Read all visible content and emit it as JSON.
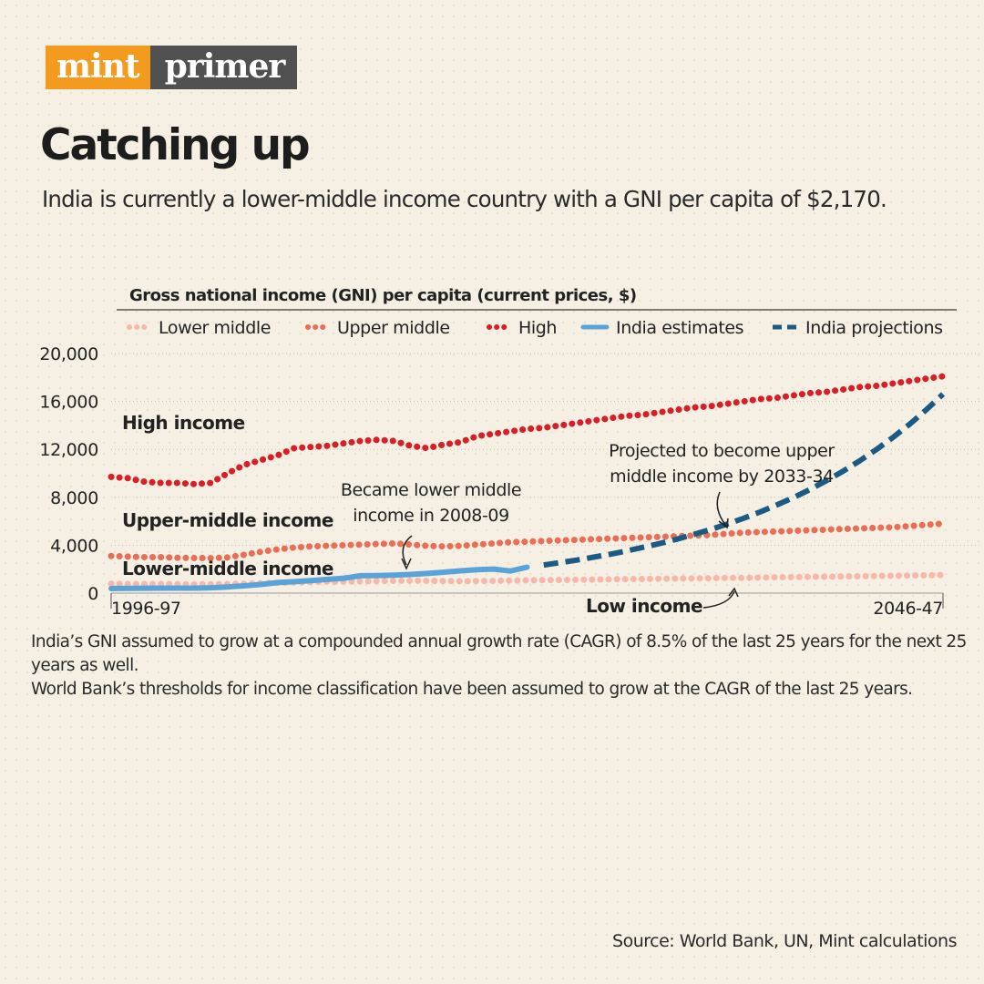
{
  "brand": {
    "left": "mint",
    "right": "primer"
  },
  "headline": "Catching up",
  "subhead": "India is currently a lower-middle income country with a GNI per capita of $2,170.",
  "colors": {
    "lower_middle": "#f5b8aa",
    "upper_middle": "#e96e55",
    "high": "#d61f26",
    "india_estimates": "#5aa3d8",
    "india_projections": "#1c5a83"
  },
  "chart_data": {
    "type": "line",
    "title": "Gross national income (GNI) per capita (current prices, $)",
    "ylim": [
      0,
      20000
    ],
    "yticks": [
      "0",
      "4,000",
      "8,000",
      "12,000",
      "16,000",
      "20,000"
    ],
    "ytick_values": [
      0,
      4000,
      8000,
      12000,
      16000,
      20000
    ],
    "x_start_label": "1996-97",
    "x_end_label": "2046-47",
    "x": [
      0,
      1,
      2,
      3,
      4,
      5,
      6,
      7,
      8,
      9,
      10,
      11,
      12,
      13,
      14,
      15,
      16,
      17,
      18,
      19,
      20,
      21,
      22,
      23,
      24,
      25,
      26,
      27,
      28,
      29,
      30,
      31,
      32,
      33,
      34,
      35,
      36,
      37,
      38,
      39,
      40,
      41,
      42,
      43,
      44,
      45,
      46,
      47,
      48,
      49,
      50
    ],
    "legend": [
      {
        "name": "Lower middle",
        "key": "lower_middle"
      },
      {
        "name": "Upper middle",
        "key": "upper_middle"
      },
      {
        "name": "High",
        "key": "high"
      },
      {
        "name": "India estimates",
        "key": "india_estimates"
      },
      {
        "name": "India projections",
        "key": "india_projections"
      }
    ],
    "series": [
      {
        "name": "Lower middle",
        "key": "lower_middle",
        "style": "dotted",
        "values": [
          780,
          760,
          760,
          760,
          750,
          740,
          740,
          760,
          790,
          830,
          860,
          880,
          920,
          950,
          960,
          980,
          1000,
          1030,
          1040,
          1030,
          1010,
          1000,
          1010,
          1030,
          1050,
          1070,
          1080,
          1100,
          1110,
          1130,
          1150,
          1170,
          1180,
          1200,
          1220,
          1230,
          1250,
          1270,
          1280,
          1300,
          1320,
          1340,
          1360,
          1370,
          1390,
          1410,
          1430,
          1450,
          1470,
          1490,
          1510
        ]
      },
      {
        "name": "Upper middle",
        "key": "upper_middle",
        "style": "dotted",
        "values": [
          3100,
          3050,
          3000,
          3000,
          2950,
          2930,
          2920,
          2980,
          3200,
          3450,
          3650,
          3800,
          3900,
          3950,
          4000,
          4050,
          4100,
          4150,
          4050,
          3950,
          3900,
          3950,
          4050,
          4150,
          4250,
          4300,
          4350,
          4400,
          4450,
          4500,
          4550,
          4600,
          4650,
          4700,
          4750,
          4800,
          4850,
          4950,
          5050,
          5100,
          5150,
          5200,
          5250,
          5300,
          5350,
          5400,
          5450,
          5500,
          5600,
          5700,
          5800
        ]
      },
      {
        "name": "High",
        "key": "high",
        "style": "dotted",
        "values": [
          9700,
          9600,
          9300,
          9200,
          9200,
          9100,
          9200,
          10000,
          10700,
          11100,
          11500,
          12100,
          12200,
          12300,
          12500,
          12700,
          12800,
          12700,
          12300,
          12100,
          12400,
          12600,
          13100,
          13300,
          13500,
          13700,
          13800,
          14000,
          14200,
          14400,
          14600,
          14800,
          14900,
          15100,
          15300,
          15500,
          15600,
          15800,
          16000,
          16200,
          16300,
          16500,
          16700,
          16800,
          17000,
          17200,
          17300,
          17500,
          17700,
          17900,
          18100
        ]
      },
      {
        "name": "India estimates",
        "key": "india_estimates",
        "style": "solid",
        "x": [
          0,
          1,
          2,
          3,
          4,
          5,
          6,
          7,
          8,
          9,
          10,
          11,
          12,
          13,
          14,
          15,
          16,
          17,
          18,
          19,
          20,
          21,
          22,
          23,
          24,
          25
        ],
        "values": [
          380,
          400,
          410,
          420,
          420,
          420,
          450,
          520,
          610,
          720,
          880,
          960,
          1040,
          1150,
          1250,
          1450,
          1470,
          1500,
          1560,
          1640,
          1750,
          1860,
          1960,
          2010,
          1850,
          2170
        ]
      },
      {
        "name": "India projections",
        "key": "india_projections",
        "style": "dashed",
        "x": [
          26,
          27,
          28,
          29,
          30,
          31,
          32,
          33,
          34,
          35,
          36,
          37,
          38,
          39,
          40,
          41,
          42,
          43,
          44,
          45,
          46,
          47,
          48,
          49,
          50
        ],
        "values": [
          2350,
          2550,
          2760,
          3000,
          3250,
          3530,
          3830,
          4150,
          4500,
          4890,
          5300,
          5750,
          6240,
          6770,
          7350,
          7970,
          8650,
          9390,
          10180,
          11050,
          11990,
          13000,
          14110,
          15310,
          16610
        ]
      }
    ],
    "annotations": [
      {
        "text": "High income"
      },
      {
        "text": "Upper-middle income"
      },
      {
        "text": "Lower-middle income"
      },
      {
        "text": "Low income"
      },
      {
        "text": "Became lower middle income in 2008-09",
        "lines": [
          "Became lower middle",
          "income in 2008-09"
        ]
      },
      {
        "text": "Projected to become upper middle income by 2033-34",
        "lines": [
          "Projected to become upper",
          "middle income by 2033-34"
        ]
      }
    ]
  },
  "notes": [
    "India’s GNI assumed to grow at a compounded annual growth rate (CAGR) of 8.5% of the last 25 years for the next 25 years as well.",
    "World Bank’s thresholds for income classification have been assumed to grow at the CAGR of the last 25 years."
  ],
  "source": "Source: World Bank, UN, Mint calculations"
}
